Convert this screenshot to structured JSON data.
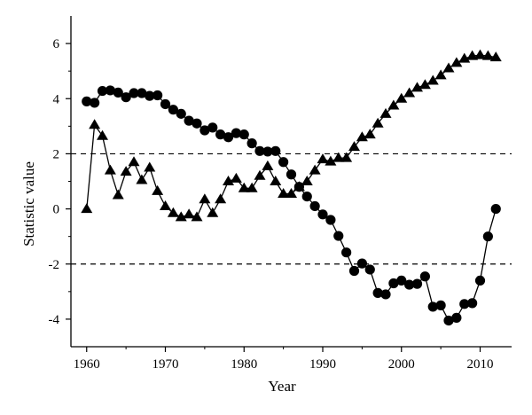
{
  "chart_data": {
    "type": "line",
    "title": "",
    "xlabel": "Year",
    "ylabel": "Statistic value",
    "xlim": [
      1958,
      2014
    ],
    "ylim": [
      -5,
      7
    ],
    "xticks": [
      1960,
      1970,
      1980,
      1990,
      2000,
      2010
    ],
    "yticks": [
      -4,
      -2,
      0,
      2,
      4,
      6
    ],
    "reference_lines": [
      2,
      -2
    ],
    "grid": false,
    "legend": "none",
    "series": [
      {
        "marker": "circle",
        "x": [
          1960,
          1961,
          1962,
          1963,
          1964,
          1965,
          1966,
          1967,
          1968,
          1969,
          1970,
          1971,
          1972,
          1973,
          1974,
          1975,
          1976,
          1977,
          1978,
          1979,
          1980,
          1981,
          1982,
          1983,
          1984,
          1985,
          1986,
          1987,
          1988,
          1989,
          1990,
          1991,
          1992,
          1993,
          1994,
          1995,
          1996,
          1997,
          1998,
          1999,
          2000,
          2001,
          2002,
          2003,
          2004,
          2005,
          2006,
          2007,
          2008,
          2009,
          2010,
          2011,
          2012
        ],
        "values": [
          3.9,
          3.85,
          4.28,
          4.3,
          4.22,
          4.05,
          4.2,
          4.2,
          4.1,
          4.12,
          3.8,
          3.6,
          3.45,
          3.2,
          3.1,
          2.85,
          2.95,
          2.7,
          2.6,
          2.75,
          2.7,
          2.38,
          2.1,
          2.08,
          2.1,
          1.7,
          1.25,
          0.8,
          0.45,
          0.1,
          -0.2,
          -0.4,
          -0.98,
          -1.58,
          -2.25,
          -1.98,
          -2.2,
          -3.05,
          -3.1,
          -2.7,
          -2.6,
          -2.75,
          -2.72,
          -2.45,
          -3.55,
          -3.5,
          -4.05,
          -3.95,
          -3.45,
          -3.42,
          -2.6,
          -1.0,
          0.0
        ]
      },
      {
        "marker": "triangle",
        "x": [
          1960,
          1961,
          1962,
          1963,
          1964,
          1965,
          1966,
          1967,
          1968,
          1969,
          1970,
          1971,
          1972,
          1973,
          1974,
          1975,
          1976,
          1977,
          1978,
          1979,
          1980,
          1981,
          1982,
          1983,
          1984,
          1985,
          1986,
          1987,
          1988,
          1989,
          1990,
          1991,
          1992,
          1993,
          1994,
          1995,
          1996,
          1997,
          1998,
          1999,
          2000,
          2001,
          2002,
          2003,
          2004,
          2005,
          2006,
          2007,
          2008,
          2009,
          2010,
          2011,
          2012
        ],
        "values": [
          0.0,
          3.05,
          2.65,
          1.4,
          0.5,
          1.35,
          1.7,
          1.05,
          1.5,
          0.65,
          0.1,
          -0.15,
          -0.3,
          -0.2,
          -0.3,
          0.35,
          -0.15,
          0.35,
          1.0,
          1.1,
          0.75,
          0.75,
          1.2,
          1.55,
          1.0,
          0.55,
          0.55,
          0.8,
          1.0,
          1.4,
          1.8,
          1.72,
          1.85,
          1.85,
          2.25,
          2.6,
          2.7,
          3.1,
          3.45,
          3.75,
          4.0,
          4.2,
          4.4,
          4.5,
          4.65,
          4.85,
          5.1,
          5.3,
          5.45,
          5.55,
          5.58,
          5.55,
          5.5
        ]
      }
    ]
  }
}
